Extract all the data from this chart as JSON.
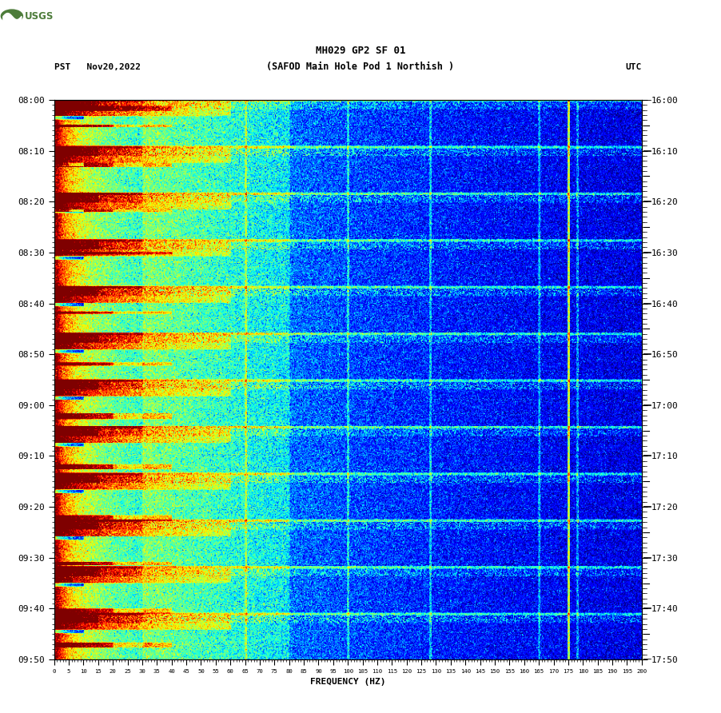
{
  "title_line1": "MH029 GP2 SF 01",
  "title_line2": "(SAFOD Main Hole Pod 1 Northish )",
  "left_label": "PST   Nov20,2022",
  "right_label": "UTC",
  "xlabel": "FREQUENCY (HZ)",
  "freq_min": 0,
  "freq_max": 200,
  "freq_ticks": [
    0,
    5,
    10,
    15,
    20,
    25,
    30,
    35,
    40,
    45,
    50,
    55,
    60,
    65,
    70,
    75,
    80,
    85,
    90,
    95,
    100,
    105,
    110,
    115,
    120,
    125,
    130,
    135,
    140,
    145,
    150,
    155,
    160,
    165,
    170,
    175,
    180,
    185,
    190,
    195,
    200
  ],
  "time_ticks_pst": [
    "08:00",
    "08:10",
    "08:20",
    "08:30",
    "08:40",
    "08:50",
    "09:00",
    "09:10",
    "09:20",
    "09:30",
    "09:40",
    "09:50"
  ],
  "time_ticks_utc": [
    "16:00",
    "16:10",
    "16:20",
    "16:30",
    "16:40",
    "16:50",
    "17:00",
    "17:10",
    "17:20",
    "17:30",
    "17:40",
    "17:50"
  ],
  "background_color": "#ffffff",
  "fig_width": 9.02,
  "fig_height": 8.92,
  "dpi": 100,
  "n_time": 660,
  "n_freq": 800,
  "vmin": -1.0,
  "vmax": 3.5
}
